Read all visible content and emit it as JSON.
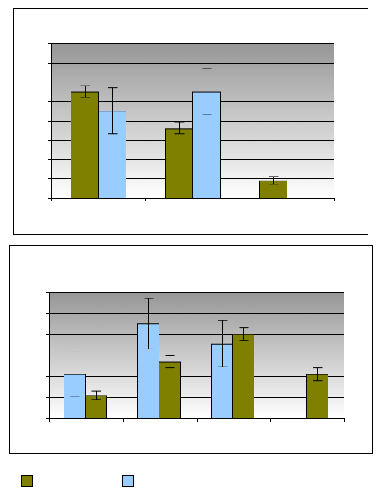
{
  "colors": {
    "olive": "#808000",
    "lightblue": "#99ccff",
    "plot_top": "#969696",
    "plot_bottom": "#ffffff",
    "frame": "#000000"
  },
  "legend": {
    "items": [
      {
        "name": "",
        "color": "#808000"
      },
      {
        "name": "",
        "color": "#99ccff"
      }
    ]
  },
  "chart_data": [
    {
      "type": "bar",
      "title": "",
      "xlabel": "",
      "ylabel": "",
      "categories": [
        "",
        "",
        ""
      ],
      "ylim": [
        0,
        8
      ],
      "grid": true,
      "series": [
        {
          "color": "#808000",
          "values": [
            5.5,
            3.6,
            0.9
          ],
          "errors": [
            0.3,
            0.3,
            0.2
          ]
        },
        {
          "color": "#99ccff",
          "values": [
            4.5,
            5.5,
            0.0
          ],
          "errors": [
            1.2,
            1.2,
            0
          ]
        }
      ]
    },
    {
      "type": "bar",
      "title": "",
      "xlabel": "",
      "ylabel": "",
      "categories": [
        "",
        "",
        "",
        ""
      ],
      "ylim": [
        0,
        6
      ],
      "grid": true,
      "series": [
        {
          "color": "#99ccff",
          "values": [
            2.1,
            4.5,
            3.55,
            null
          ],
          "errors": [
            1.05,
            1.2,
            1.1,
            0
          ]
        },
        {
          "color": "#808000",
          "values": [
            1.1,
            2.7,
            4.0,
            2.1
          ],
          "errors": [
            0.2,
            0.3,
            0.3,
            0.3
          ]
        }
      ]
    }
  ]
}
